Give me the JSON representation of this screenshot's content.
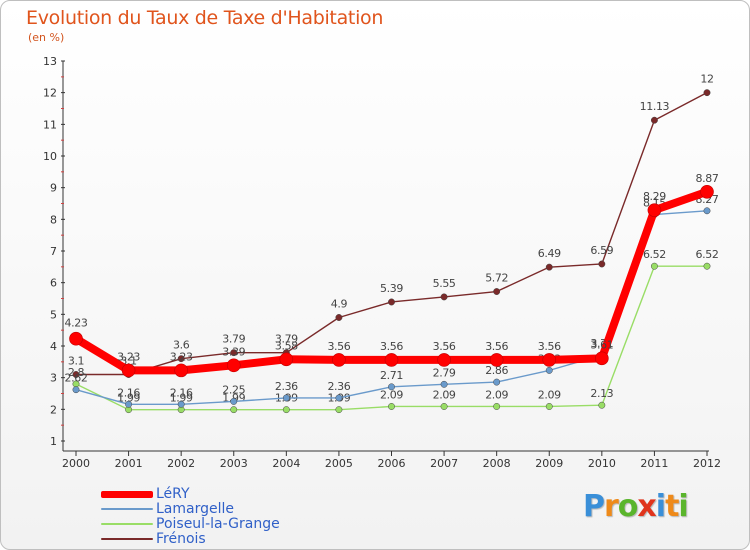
{
  "chart_data": {
    "type": "line",
    "title": "Evolution du Taux de Taxe d'Habitation",
    "subtitle": "(en %)",
    "xlabel": "",
    "ylabel": "",
    "x": [
      "2000",
      "2001",
      "2002",
      "2003",
      "2004",
      "2005",
      "2006",
      "2007",
      "2008",
      "2009",
      "2010",
      "2011",
      "2012"
    ],
    "ylim": [
      1,
      13
    ],
    "yticks": [
      1,
      2,
      3,
      4,
      5,
      6,
      7,
      8,
      9,
      10,
      11,
      12,
      13
    ],
    "grid": false,
    "legend_position": "bottom-left",
    "series": [
      {
        "name": "Frénois",
        "color": "#7a2a2a",
        "values": [
          3.1,
          3.1,
          3.6,
          3.79,
          3.79,
          4.9,
          5.39,
          5.55,
          5.72,
          6.49,
          6.59,
          11.13,
          12
        ],
        "labels": [
          "3.1",
          "3.1",
          "3.6",
          "3.79",
          "3.79",
          "4.9",
          "5.39",
          "5.55",
          "5.72",
          "6.49",
          "6.59",
          "11.13",
          "12"
        ]
      },
      {
        "name": "Poiseul-la-Grange",
        "color": "#99dd66",
        "values": [
          2.8,
          1.99,
          1.99,
          1.99,
          1.99,
          1.99,
          2.09,
          2.09,
          2.09,
          2.09,
          2.13,
          6.52,
          6.52
        ],
        "labels": [
          "2.8",
          "1.99",
          "1.99",
          "1.99",
          "1.99",
          "1.99",
          "2.09",
          "2.09",
          "2.09",
          "2.09",
          "2.13",
          "6.52",
          "6.52"
        ]
      },
      {
        "name": "Lamargelle",
        "color": "#6a9acb",
        "values": [
          2.62,
          2.16,
          2.16,
          2.25,
          2.36,
          2.36,
          2.71,
          2.79,
          2.86,
          3.23,
          3.71,
          8.15,
          8.27
        ],
        "labels": [
          "2.62",
          "2.16",
          "2.16",
          "2.25",
          "2.36",
          "2.36",
          "2.71",
          "2.79",
          "2.86",
          "3.23",
          "3.71",
          "8.15",
          "8.27"
        ]
      },
      {
        "name": "LéRY",
        "color": "#ff0000",
        "values": [
          4.23,
          3.23,
          3.23,
          3.39,
          3.58,
          3.56,
          3.56,
          3.56,
          3.56,
          3.56,
          3.61,
          8.29,
          8.87
        ],
        "labels": [
          "4.23",
          "3.23",
          "3.23",
          "3.39",
          "3.58",
          "3.56",
          "3.56",
          "3.56",
          "3.56",
          "3.56",
          "3.61",
          "8.29",
          "8.87"
        ]
      }
    ]
  },
  "legend": [
    {
      "label": "LéRY",
      "color": "#ff0000"
    },
    {
      "label": "Lamargelle",
      "color": "#6a9acb"
    },
    {
      "label": "Poiseul-la-Grange",
      "color": "#99dd66"
    },
    {
      "label": "Frénois",
      "color": "#7a2a2a"
    }
  ],
  "brand": {
    "letters": [
      "P",
      "r",
      "o",
      "x",
      "i",
      "t",
      "i"
    ],
    "colors": [
      "#3a8fd8",
      "#ee8a1a",
      "#5ab52c",
      "#e0341c",
      "#3a8fd8",
      "#ee8a1a",
      "#5ab52c"
    ]
  }
}
